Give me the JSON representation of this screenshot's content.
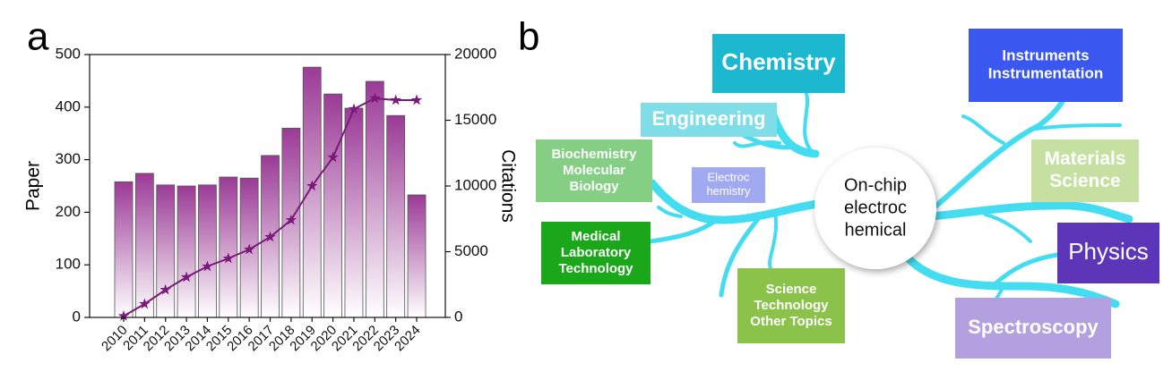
{
  "chart_data": {
    "type": "bar",
    "panel_label": "a",
    "ylabel": "Paper",
    "y2label": "Citations",
    "categories": [
      "2010",
      "2011",
      "2012",
      "2013",
      "2014",
      "2015",
      "2016",
      "2017",
      "2018",
      "2019",
      "2020",
      "2021",
      "2022",
      "2023",
      "2024"
    ],
    "series": [
      {
        "type": "bar",
        "color": "#9b3a96",
        "values": [
          258,
          274,
          252,
          250,
          252,
          267,
          265,
          308,
          360,
          476,
          425,
          398,
          449,
          384,
          233
        ]
      },
      {
        "type": "line",
        "axis": "y2",
        "color": "#7b1a7b",
        "values": [
          100,
          1020,
          2100,
          3060,
          3880,
          4490,
          5170,
          6120,
          7410,
          10000,
          12180,
          15850,
          16670,
          16530,
          16530
        ]
      }
    ],
    "ylim": [
      0,
      500
    ],
    "yticks": [
      0,
      100,
      200,
      300,
      400,
      500
    ],
    "y2lim": [
      0,
      20000
    ],
    "y2ticks": [
      0,
      5000,
      10000,
      15000,
      20000
    ]
  },
  "diagram": {
    "panel_label": "b",
    "center": [
      "On-chip",
      "electroc",
      "hemical"
    ],
    "nodes": [
      {
        "lines": [
          "Chemistry"
        ],
        "color": "#1bb8cf"
      },
      {
        "lines": [
          "Engineering"
        ],
        "color": "#7fdde8"
      },
      {
        "lines": [
          "Biochemistry",
          "Molecular",
          "Biology"
        ],
        "color": "#84cf84"
      },
      {
        "lines": [
          "Electroc",
          "hemistry"
        ],
        "color": "#a1a9f0"
      },
      {
        "lines": [
          "Medical",
          "Laboratory",
          "Technology"
        ],
        "color": "#1aa81a"
      },
      {
        "lines": [
          "Science",
          "Technology",
          "Other Topics"
        ],
        "color": "#8bc34a"
      },
      {
        "lines": [
          "Instruments",
          "Instrumentation"
        ],
        "color": "#3a58f0"
      },
      {
        "lines": [
          "Materials",
          "Science"
        ],
        "color": "#c5e0a0"
      },
      {
        "lines": [
          "Physics"
        ],
        "color": "#5c35b8"
      },
      {
        "lines": [
          "Spectroscopy"
        ],
        "color": "#b3a0e0"
      }
    ]
  }
}
